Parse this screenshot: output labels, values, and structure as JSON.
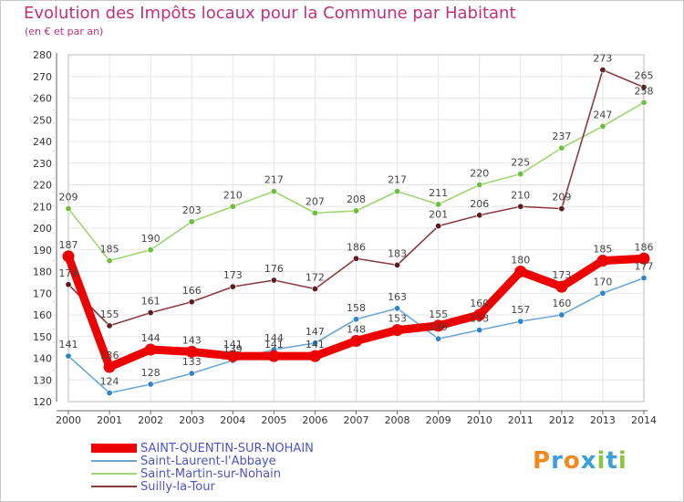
{
  "header": {
    "title": "Evolution des Impôts locaux pour la Commune par Habitant",
    "subtitle": "(en € et par an)"
  },
  "logo": {
    "text": "Proxiti",
    "letters": [
      "P",
      "r",
      "o",
      "x",
      "i",
      "t",
      "i"
    ],
    "colors": [
      "#f08a1c",
      "#3aa0d8",
      "#f08a1c",
      "#3aa0d8",
      "#8cc63f",
      "#3aa0d8",
      "#8cc63f"
    ]
  },
  "chart_data": {
    "type": "line",
    "x": [
      "2000",
      "2001",
      "2002",
      "2003",
      "2004",
      "2005",
      "2006",
      "2007",
      "2008",
      "2009",
      "2010",
      "2011",
      "2012",
      "2013",
      "2014"
    ],
    "yticks": [
      "120",
      "130",
      "140",
      "150",
      "160",
      "170",
      "180",
      "190",
      "200",
      "210",
      "220",
      "230",
      "240",
      "250",
      "260",
      "270",
      "280"
    ],
    "ylim": [
      120,
      280
    ],
    "grid": true,
    "legend_position": "bottom-left",
    "series": [
      {
        "name": "SAINT-QUENTIN-SUR-NOHAIN",
        "values": [
          187,
          136,
          144,
          143,
          141,
          141,
          141,
          148,
          153,
          155,
          160,
          180,
          173,
          185,
          186
        ],
        "labels": [
          "187",
          "136",
          "144",
          "143",
          "141",
          "141",
          "141",
          "148",
          "153",
          "155",
          "160",
          "180",
          "173",
          "185",
          "186"
        ],
        "color": "#ee0000",
        "highlight": true
      },
      {
        "name": "Saint-Laurent-l'Abbaye",
        "values": [
          141,
          124,
          128,
          133,
          139,
          144,
          147,
          158,
          163,
          149,
          153,
          157,
          160,
          170,
          177
        ],
        "labels": [
          "141",
          "124",
          "128",
          "133",
          "139",
          "144",
          "147",
          "158",
          "163",
          "149",
          "153",
          "157",
          "160",
          "170",
          "177"
        ],
        "color": "#6aa6d6",
        "point_color": "#2f83c7"
      },
      {
        "name": "Saint-Martin-sur-Nohain",
        "values": [
          209,
          185,
          190,
          203,
          210,
          217,
          207,
          208,
          217,
          211,
          220,
          225,
          237,
          247,
          258
        ],
        "labels": [
          "209",
          "185",
          "190",
          "203",
          "210",
          "217",
          "207",
          "208",
          "217",
          "211",
          "220",
          "225",
          "237",
          "247",
          "258"
        ],
        "color": "#9ed672",
        "point_color": "#6cbf3a"
      },
      {
        "name": "Suilly-la-Tour",
        "values": [
          174,
          155,
          161,
          166,
          173,
          176,
          172,
          186,
          183,
          201,
          206,
          210,
          209,
          273,
          265
        ],
        "labels": [
          "174",
          "155",
          "161",
          "166",
          "173",
          "176",
          "172",
          "186",
          "183",
          "201",
          "206",
          "210",
          "209",
          "273",
          "265"
        ],
        "color": "#8a3a40",
        "point_color": "#5c1c22"
      }
    ]
  }
}
